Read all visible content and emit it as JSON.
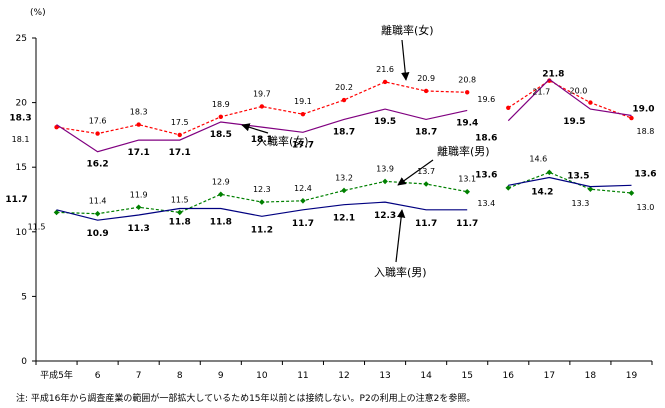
{
  "chart_data": {
    "type": "line",
    "y_unit": "(%)",
    "ylim": [
      0,
      25
    ],
    "y_ticks": [
      "0",
      "5",
      "10",
      "15",
      "20",
      "25"
    ],
    "x": [
      "平成5年",
      "6",
      "7",
      "8",
      "9",
      "10",
      "11",
      "12",
      "13",
      "14",
      "15",
      "16",
      "17",
      "18",
      "19"
    ],
    "break_after_index": 10,
    "series": [
      {
        "name": "離職率(女)",
        "color": "#ff0000",
        "dashed": true,
        "marker": "circle",
        "label_style": "normal",
        "values": [
          18.1,
          17.6,
          18.3,
          17.5,
          18.9,
          19.7,
          19.1,
          20.2,
          21.6,
          20.9,
          20.8,
          19.6,
          21.7,
          20.0,
          18.8
        ],
        "labels": [
          "18.1",
          "17.6",
          "18.3",
          "17.5",
          "18.9",
          "19.7",
          "19.1",
          "20.2",
          "21.6",
          "20.9",
          "20.8",
          "19.6",
          "21.7",
          "20.0",
          "18.8"
        ]
      },
      {
        "name": "入職率(女)",
        "color": "#800080",
        "dashed": false,
        "marker": "none",
        "label_style": "bold",
        "values": [
          18.3,
          16.2,
          17.1,
          17.1,
          18.5,
          18.1,
          17.7,
          18.7,
          19.5,
          18.7,
          19.4,
          18.6,
          21.8,
          19.5,
          19.0
        ],
        "labels": [
          "18.3",
          "16.2",
          "17.1",
          "17.1",
          "18.5",
          "18.1",
          "17.7",
          "18.7",
          "19.5",
          "18.7",
          "19.4",
          "18.6",
          "21.8",
          "19.5",
          "19.0"
        ]
      },
      {
        "name": "離職率(男)",
        "color": "#008000",
        "dashed": true,
        "marker": "diamond",
        "label_style": "normal",
        "values": [
          11.5,
          11.4,
          11.9,
          11.5,
          12.9,
          12.3,
          12.4,
          13.2,
          13.9,
          13.7,
          13.1,
          13.4,
          14.6,
          13.3,
          13.0
        ],
        "labels": [
          "11.5",
          "11.4",
          "11.9",
          "11.5",
          "12.9",
          "12.3",
          "12.4",
          "13.2",
          "13.9",
          "13.7",
          "13.1",
          "13.4",
          "14.6",
          "13.3",
          "13.0"
        ]
      },
      {
        "name": "入職率(男)",
        "color": "#000080",
        "dashed": false,
        "marker": "none",
        "label_style": "bold",
        "values": [
          11.7,
          10.9,
          11.3,
          11.8,
          11.8,
          11.2,
          11.7,
          12.1,
          12.3,
          11.7,
          11.7,
          13.6,
          14.2,
          13.5,
          13.6
        ],
        "labels": [
          "11.7",
          "10.9",
          "11.3",
          "11.8",
          "11.8",
          "11.2",
          "11.7",
          "12.1",
          "12.3",
          "11.7",
          "11.7",
          "13.6",
          "14.2",
          "13.5",
          "13.6"
        ]
      }
    ],
    "annotations": [
      "離職率(女)",
      "入職率(女)",
      "離職率(男)",
      "入職率(男)"
    ]
  },
  "note": "注: 平成16年から調査産業の範囲が一部拡大しているため15年以前とは接続しない。P2の利用上の注意2を参照。"
}
